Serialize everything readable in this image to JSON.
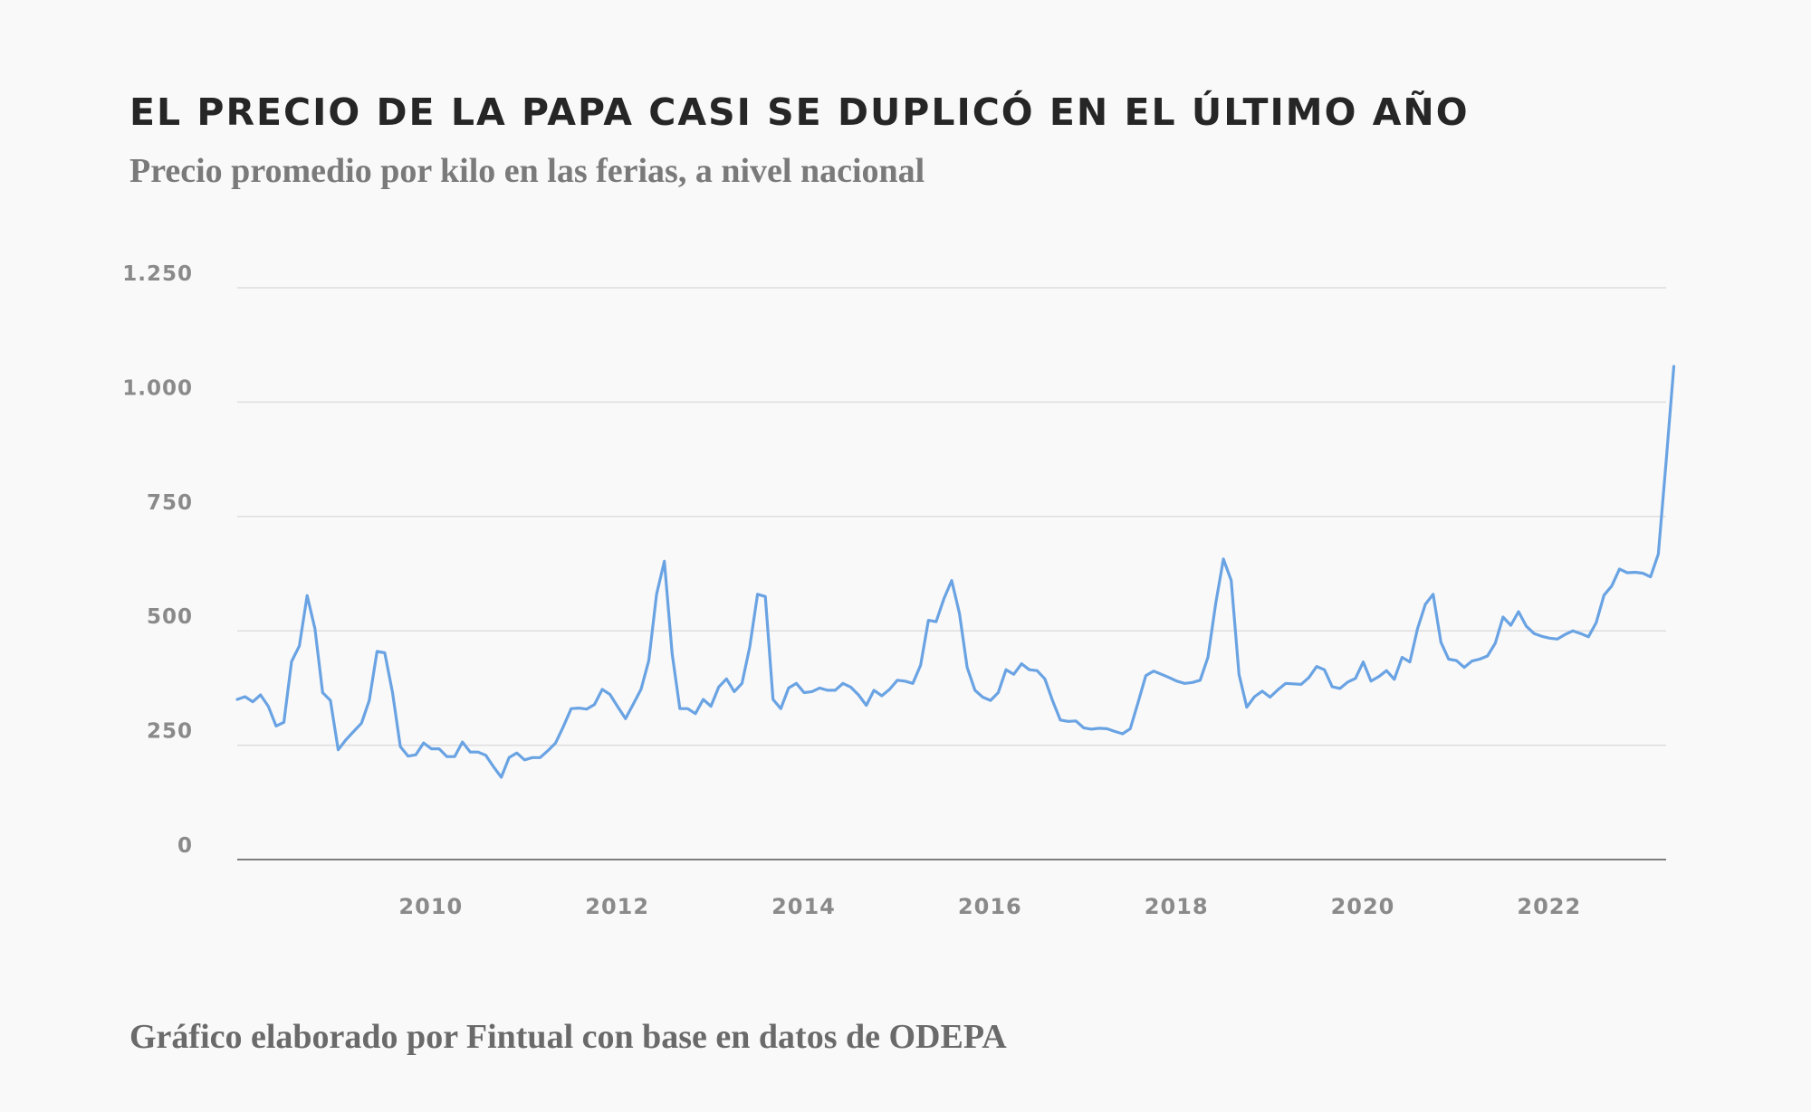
{
  "header": {
    "title": "EL PRECIO DE LA PAPA CASI SE DUPLICÓ EN EL ÚLTIMO AÑO",
    "subtitle": "Precio promedio por kilo en las ferias, a nivel nacional"
  },
  "footer": {
    "source": "Gráfico elaborado por Fintual con base en datos de ODEPA"
  },
  "chart_data": {
    "type": "line",
    "title": "EL PRECIO DE LA PAPA CASI SE DUPLICÓ EN EL ÚLTIMO AÑO",
    "subtitle": "Precio promedio por kilo en las ferias, a nivel nacional",
    "xlabel": "",
    "ylabel": "",
    "ylim": [
      0,
      1250
    ],
    "xlim": [
      2008.0,
      2023.333
    ],
    "grid": true,
    "line_color": "#6aa3e3",
    "yticks": [
      0,
      250,
      500,
      750,
      1000,
      1250
    ],
    "ytick_labels": [
      "0",
      "250",
      "500",
      "750",
      "1.000",
      "1.250"
    ],
    "xticks": [
      2010,
      2012,
      2014,
      2016,
      2018,
      2020,
      2022
    ],
    "xtick_labels": [
      "2010",
      "2012",
      "2014",
      "2016",
      "2018",
      "2020",
      "2022"
    ],
    "series": [
      {
        "name": "Precio promedio por kilo",
        "start_year": 2008.0,
        "step_years": 0.08333,
        "values": [
          350,
          356,
          345,
          360,
          335,
          292,
          300,
          433,
          467,
          577,
          505,
          365,
          348,
          240,
          262,
          280,
          298,
          348,
          455,
          452,
          365,
          247,
          226,
          229,
          255,
          242,
          242,
          225,
          225,
          257,
          235,
          235,
          228,
          203,
          180,
          223,
          233,
          218,
          223,
          223,
          238,
          255,
          291,
          330,
          331,
          329,
          339,
          372,
          361,
          334,
          308,
          340,
          372,
          435,
          580,
          652,
          450,
          330,
          330,
          319,
          350,
          335,
          377,
          395,
          367,
          385,
          465,
          580,
          575,
          350,
          330,
          375,
          385,
          365,
          367,
          375,
          370,
          370,
          385,
          377,
          360,
          337,
          370,
          358,
          372,
          392,
          390,
          385,
          425,
          523,
          520,
          570,
          610,
          538,
          420,
          370,
          355,
          348,
          365,
          415,
          405,
          428,
          415,
          413,
          395,
          347,
          305,
          302,
          303,
          288,
          285,
          287,
          286,
          280,
          275,
          286,
          343,
          402,
          412,
          405,
          398,
          390,
          385,
          387,
          392,
          442,
          560,
          657,
          610,
          405,
          333,
          356,
          368,
          355,
          371,
          385,
          384,
          383,
          398,
          422,
          415,
          378,
          374,
          388,
          396,
          432,
          390,
          400,
          413,
          394,
          442,
          432,
          505,
          558,
          580,
          475,
          438,
          435,
          420,
          434,
          438,
          445,
          473,
          530,
          512,
          542,
          510,
          494,
          488,
          484,
          482,
          492,
          500,
          494,
          487,
          518,
          578,
          598,
          635,
          627,
          628,
          626,
          618,
          668,
          870,
          1078
        ]
      }
    ]
  }
}
